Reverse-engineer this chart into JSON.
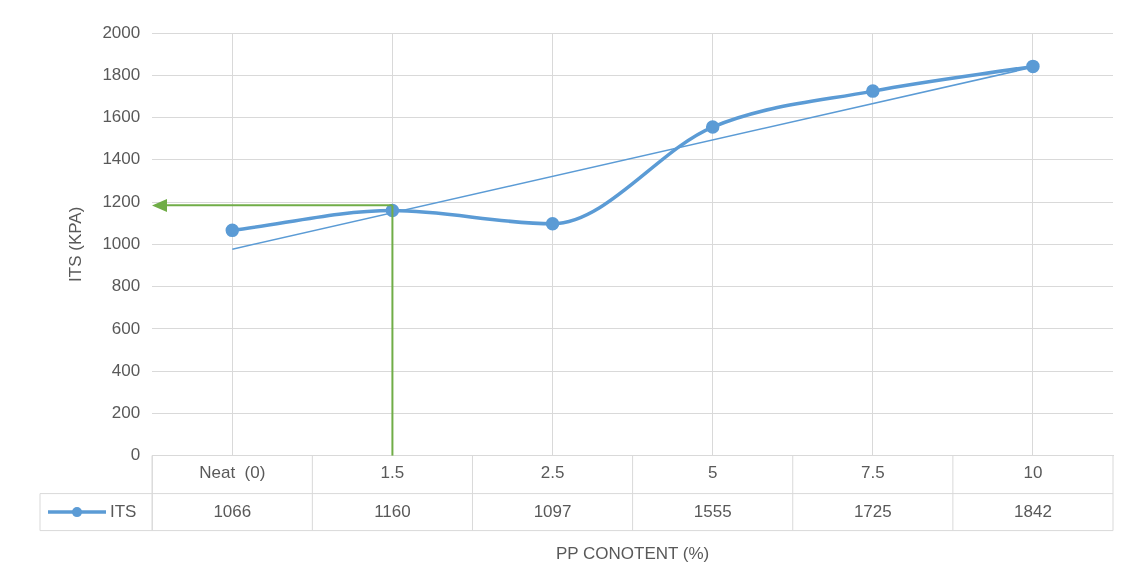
{
  "chart_data": {
    "type": "line",
    "xlabel": "PP CONOTENT (%)",
    "ylabel": "ITS (KPA)",
    "categories": [
      "Neat  (0)",
      "1.5",
      "2.5",
      "5",
      "7.5",
      "10"
    ],
    "series": [
      {
        "name": "ITS",
        "color": "#5b9bd5",
        "values": [
          1066,
          1160,
          1097,
          1555,
          1725,
          1842
        ],
        "value_labels": [
          "1066",
          "1160",
          "1097",
          "1555",
          "1725",
          "1842"
        ]
      },
      {
        "type": "line",
        "color": "#5b9bd5",
        "x": [
          "Neat  (0)",
          "10"
        ],
        "values": [
          977,
          1838
        ],
        "marker": "none"
      }
    ],
    "ylim": [
      0,
      2000
    ],
    "yticks": [
      0,
      200,
      400,
      600,
      800,
      1000,
      1200,
      1400,
      1600,
      1800,
      2000
    ],
    "grid": true,
    "marker": "circle",
    "legend": "bottom left",
    "ref_lines": [
      {
        "axis": "x",
        "value": "1.5",
        "color": "#70ad47"
      },
      {
        "axis": "y",
        "value": 1185,
        "color": "#70ad47"
      }
    ]
  }
}
